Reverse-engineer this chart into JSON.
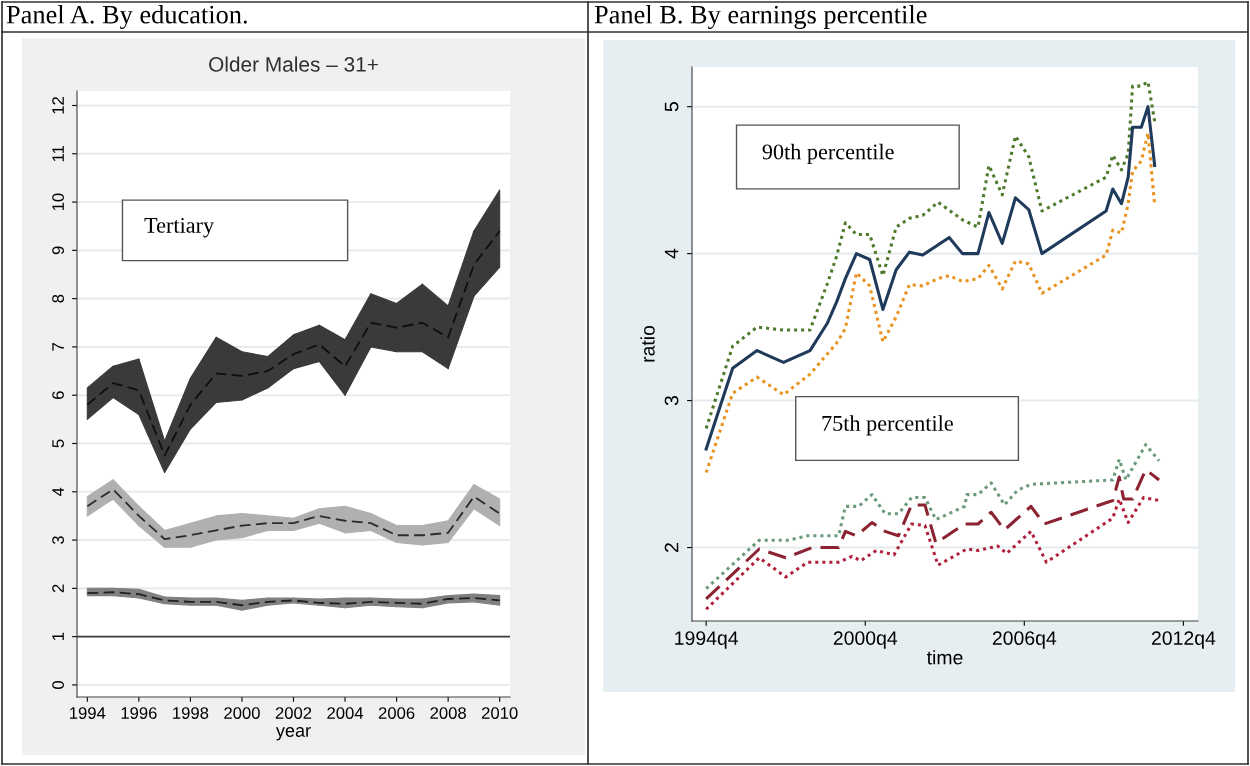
{
  "chart_data": [
    {
      "type": "line",
      "title": "Panel A. By education.",
      "subtitle": "Older Males – 31+",
      "xlabel": "year",
      "x": [
        1994,
        1995,
        1996,
        1997,
        1998,
        1999,
        2000,
        2001,
        2002,
        2003,
        2004,
        2005,
        2006,
        2007,
        2008,
        2009,
        2010
      ],
      "series": [
        {
          "color": "#0e0e0e",
          "colors": [
            "#3a3a3a",
            "#3a3a3a",
            "#3a3a3a",
            "#3a3a3a",
            "#3a3a3a",
            "#3a3a3a",
            "#3a3a3a",
            "#3a3a3a",
            "#3a3a3a",
            "#3a3a3a",
            "#3a3a3a",
            "#3a3a3a",
            "#3a3a3a",
            "#3a3a3a",
            "#3a3a3a",
            "#3a3a3a",
            "#3a3a3a"
          ],
          "values": [
            5.8,
            6.25,
            6.1,
            4.75,
            5.8,
            6.45,
            6.4,
            6.5,
            6.85,
            7.05,
            6.6,
            7.5,
            7.4,
            7.5,
            7.2,
            8.7,
            9.4
          ],
          "lower": [
            5.5,
            5.95,
            5.6,
            4.4,
            5.3,
            5.85,
            5.9,
            6.15,
            6.55,
            6.7,
            6.0,
            7.0,
            6.9,
            6.9,
            6.55,
            8.05,
            8.65
          ],
          "upper": [
            6.15,
            6.6,
            6.75,
            5.05,
            6.35,
            7.2,
            6.9,
            6.8,
            7.25,
            7.45,
            7.15,
            8.1,
            7.9,
            8.3,
            7.85,
            9.4,
            10.25
          ]
        },
        {
          "color": "#2c2c2c",
          "colors": [
            "#b0b0b0",
            "#b0b0b0",
            "#b0b0b0",
            "#b0b0b0",
            "#b0b0b0",
            "#b0b0b0",
            "#b0b0b0",
            "#b0b0b0",
            "#b0b0b0",
            "#b0b0b0",
            "#b0b0b0",
            "#b0b0b0",
            "#b0b0b0",
            "#b0b0b0",
            "#b0b0b0",
            "#b0b0b0",
            "#b0b0b0"
          ],
          "values": [
            3.7,
            4.05,
            3.5,
            3.02,
            3.1,
            3.2,
            3.3,
            3.35,
            3.35,
            3.5,
            3.4,
            3.35,
            3.1,
            3.1,
            3.15,
            3.9,
            3.55
          ],
          "lower": [
            3.5,
            3.85,
            3.3,
            2.85,
            2.85,
            3.0,
            3.05,
            3.2,
            3.2,
            3.35,
            3.15,
            3.2,
            2.95,
            2.9,
            2.95,
            3.65,
            3.3
          ],
          "upper": [
            3.9,
            4.25,
            3.7,
            3.2,
            3.35,
            3.5,
            3.55,
            3.5,
            3.45,
            3.65,
            3.7,
            3.55,
            3.3,
            3.3,
            3.4,
            4.15,
            3.85
          ]
        },
        {
          "color": "#202020",
          "colors": [
            "#808080",
            "#808080",
            "#808080",
            "#808080",
            "#808080",
            "#808080",
            "#808080",
            "#808080",
            "#808080",
            "#808080",
            "#808080",
            "#808080",
            "#808080",
            "#808080",
            "#808080",
            "#808080",
            "#808080"
          ],
          "values": [
            1.9,
            1.92,
            1.88,
            1.75,
            1.72,
            1.72,
            1.65,
            1.72,
            1.75,
            1.7,
            1.68,
            1.72,
            1.7,
            1.68,
            1.78,
            1.8,
            1.75
          ],
          "lower": [
            1.85,
            1.85,
            1.8,
            1.68,
            1.65,
            1.65,
            1.55,
            1.65,
            1.7,
            1.65,
            1.6,
            1.65,
            1.62,
            1.6,
            1.7,
            1.72,
            1.65
          ],
          "upper": [
            2.0,
            2.0,
            1.98,
            1.82,
            1.8,
            1.8,
            1.75,
            1.8,
            1.8,
            1.78,
            1.8,
            1.8,
            1.78,
            1.78,
            1.85,
            1.88,
            1.85
          ]
        }
      ],
      "xlim": [
        1993.6,
        2010.4
      ],
      "xticks": [
        1994,
        1996,
        1998,
        2000,
        2002,
        2004,
        2006,
        2008,
        2010
      ],
      "ylim": [
        -0.25,
        12.3
      ],
      "yticks": [
        0,
        1,
        2,
        3,
        4,
        5,
        6,
        7,
        8,
        9,
        10,
        11,
        12
      ],
      "ref_lines": [
        {
          "axis": "y",
          "value": 1,
          "color": "#404040"
        }
      ],
      "annotations": [
        "Tertiary"
      ],
      "grid": "y",
      "line_style": "dashed"
    },
    {
      "type": "line",
      "title": "Panel B. By earnings percentile",
      "xlabel": "time",
      "ylabel": "ratio",
      "series": [
        {
          "color": "#4e7a2c",
          "line_style": "dotted",
          "x": [
            "1994-10",
            "1995-10",
            "1996-09",
            "1997-09",
            "1998-09",
            "1999-05",
            "1999-09",
            "2000-01",
            "2000-06",
            "2000-12",
            "2001-06",
            "2001-12",
            "2002-06",
            "2002-12",
            "2003-07",
            "2004-06",
            "2005-01",
            "2005-06",
            "2005-12",
            "2006-06",
            "2006-12",
            "2007-06",
            "2009-11",
            "2010-02",
            "2010-06",
            "2010-09",
            "2010-11",
            "2011-03",
            "2011-06",
            "2011-09"
          ],
          "values": [
            2.81,
            3.37,
            3.5,
            3.48,
            3.48,
            3.8,
            3.98,
            4.21,
            4.13,
            4.13,
            3.85,
            4.18,
            4.24,
            4.26,
            4.35,
            4.23,
            4.18,
            4.6,
            4.4,
            4.8,
            4.66,
            4.29,
            4.52,
            4.67,
            4.57,
            4.68,
            5.14,
            5.14,
            5.17,
            4.9
          ]
        },
        {
          "color": "#1f3a5a",
          "line_style": "solid",
          "x": [
            "1994-10",
            "1995-10",
            "1996-09",
            "1997-09",
            "1998-09",
            "1999-05",
            "1999-09",
            "2000-01",
            "2000-06",
            "2000-12",
            "2001-06",
            "2001-12",
            "2002-06",
            "2002-12",
            "2003-12",
            "2004-06",
            "2005-01",
            "2005-06",
            "2005-12",
            "2006-06",
            "2006-12",
            "2007-06",
            "2009-11",
            "2010-02",
            "2010-06",
            "2010-09",
            "2010-11",
            "2011-03",
            "2011-06",
            "2011-09"
          ],
          "values": [
            2.67,
            3.22,
            3.34,
            3.26,
            3.34,
            3.53,
            3.67,
            3.83,
            4.0,
            3.96,
            3.62,
            3.89,
            4.01,
            3.99,
            4.11,
            4.0,
            4.0,
            4.28,
            4.07,
            4.38,
            4.3,
            4.0,
            4.29,
            4.44,
            4.34,
            4.52,
            4.86,
            4.86,
            5.0,
            4.6
          ]
        },
        {
          "color": "#e8921f",
          "line_style": "dotted",
          "x": [
            "1994-10",
            "1995-10",
            "1996-09",
            "1997-09",
            "1998-09",
            "1999-09",
            "2000-01",
            "2000-06",
            "2000-12",
            "2001-06",
            "2001-12",
            "2002-06",
            "2002-12",
            "2003-07",
            "2003-12",
            "2004-06",
            "2005-01",
            "2005-06",
            "2005-12",
            "2006-06",
            "2006-12",
            "2007-06",
            "2009-11",
            "2010-02",
            "2010-06",
            "2010-09",
            "2010-11",
            "2011-03",
            "2011-06",
            "2011-09"
          ],
          "values": [
            2.51,
            3.05,
            3.16,
            3.04,
            3.18,
            3.39,
            3.49,
            3.87,
            3.78,
            3.4,
            3.57,
            3.79,
            3.78,
            3.83,
            3.85,
            3.81,
            3.83,
            3.92,
            3.76,
            3.95,
            3.93,
            3.73,
            3.99,
            4.16,
            4.14,
            4.34,
            4.56,
            4.63,
            4.82,
            4.33
          ]
        },
        {
          "color": "#6a9a7a",
          "line_style": "dotted",
          "x": [
            "1994-10",
            "1996-10",
            "1997-11",
            "1998-08",
            "1999-10",
            "2000-01",
            "2000-07",
            "2001-01",
            "2001-07",
            "2002-01",
            "2002-07",
            "2003-01",
            "2003-06",
            "2004-07",
            "2004-08",
            "2005-01",
            "2005-07",
            "2006-01",
            "2006-07",
            "2007-01",
            "2010-02",
            "2010-05",
            "2010-08",
            "2011-05",
            "2011-11"
          ],
          "values": [
            1.72,
            2.05,
            2.05,
            2.08,
            2.08,
            2.28,
            2.28,
            2.36,
            2.23,
            2.23,
            2.34,
            2.34,
            2.19,
            2.28,
            2.36,
            2.36,
            2.44,
            2.29,
            2.39,
            2.43,
            2.46,
            2.6,
            2.46,
            2.7,
            2.59
          ]
        },
        {
          "color": "#8b2332",
          "line_style": "dashed",
          "x": [
            "1994-10",
            "1996-10",
            "1997-10",
            "1998-10",
            "1999-10",
            "2000-01",
            "2000-06",
            "2001-01",
            "2001-07",
            "2002-01",
            "2002-07",
            "2003-01",
            "2003-06",
            "2004-07",
            "2005-01",
            "2005-07",
            "2006-01",
            "2007-01",
            "2007-07",
            "2010-02",
            "2010-05",
            "2010-07",
            "2010-11",
            "2011-05",
            "2011-11"
          ],
          "values": [
            1.65,
            1.99,
            1.93,
            2.0,
            2.0,
            2.11,
            2.08,
            2.17,
            2.11,
            2.08,
            2.29,
            2.29,
            2.03,
            2.16,
            2.16,
            2.24,
            2.12,
            2.28,
            2.16,
            2.32,
            2.48,
            2.33,
            2.33,
            2.53,
            2.46
          ]
        },
        {
          "color": "#b0203c",
          "line_style": "dotted",
          "x": [
            "1994-10",
            "1996-10",
            "1997-10",
            "1998-08",
            "1999-10",
            "2000-04",
            "2000-08",
            "2001-03",
            "2001-11",
            "2002-07",
            "2003-01",
            "2003-07",
            "2004-08",
            "2005-01",
            "2005-10",
            "2006-02",
            "2007-01",
            "2007-08",
            "2010-02",
            "2010-05",
            "2010-09",
            "2011-04",
            "2011-11"
          ],
          "values": [
            1.58,
            1.93,
            1.8,
            1.9,
            1.9,
            1.94,
            1.91,
            1.98,
            1.95,
            2.16,
            2.15,
            1.88,
            1.99,
            1.98,
            2.01,
            1.96,
            2.11,
            1.9,
            2.2,
            2.33,
            2.17,
            2.34,
            2.32
          ]
        }
      ],
      "xlim": [
        "1994-03-20",
        "2013-04-20"
      ],
      "xticks": [
        {
          "value": "1994-10-01",
          "label": "1994q4"
        },
        {
          "value": "2000-10-01",
          "label": "2000q4"
        },
        {
          "value": "2006-10-01",
          "label": "2006q4"
        },
        {
          "value": "2012-10-01",
          "label": "2012q4"
        }
      ],
      "ylim": [
        1.5,
        5.27
      ],
      "yticks": [
        2,
        3,
        4,
        5
      ],
      "annotations": [
        "90th percentile",
        "75th percentile"
      ],
      "grid": "y"
    }
  ]
}
